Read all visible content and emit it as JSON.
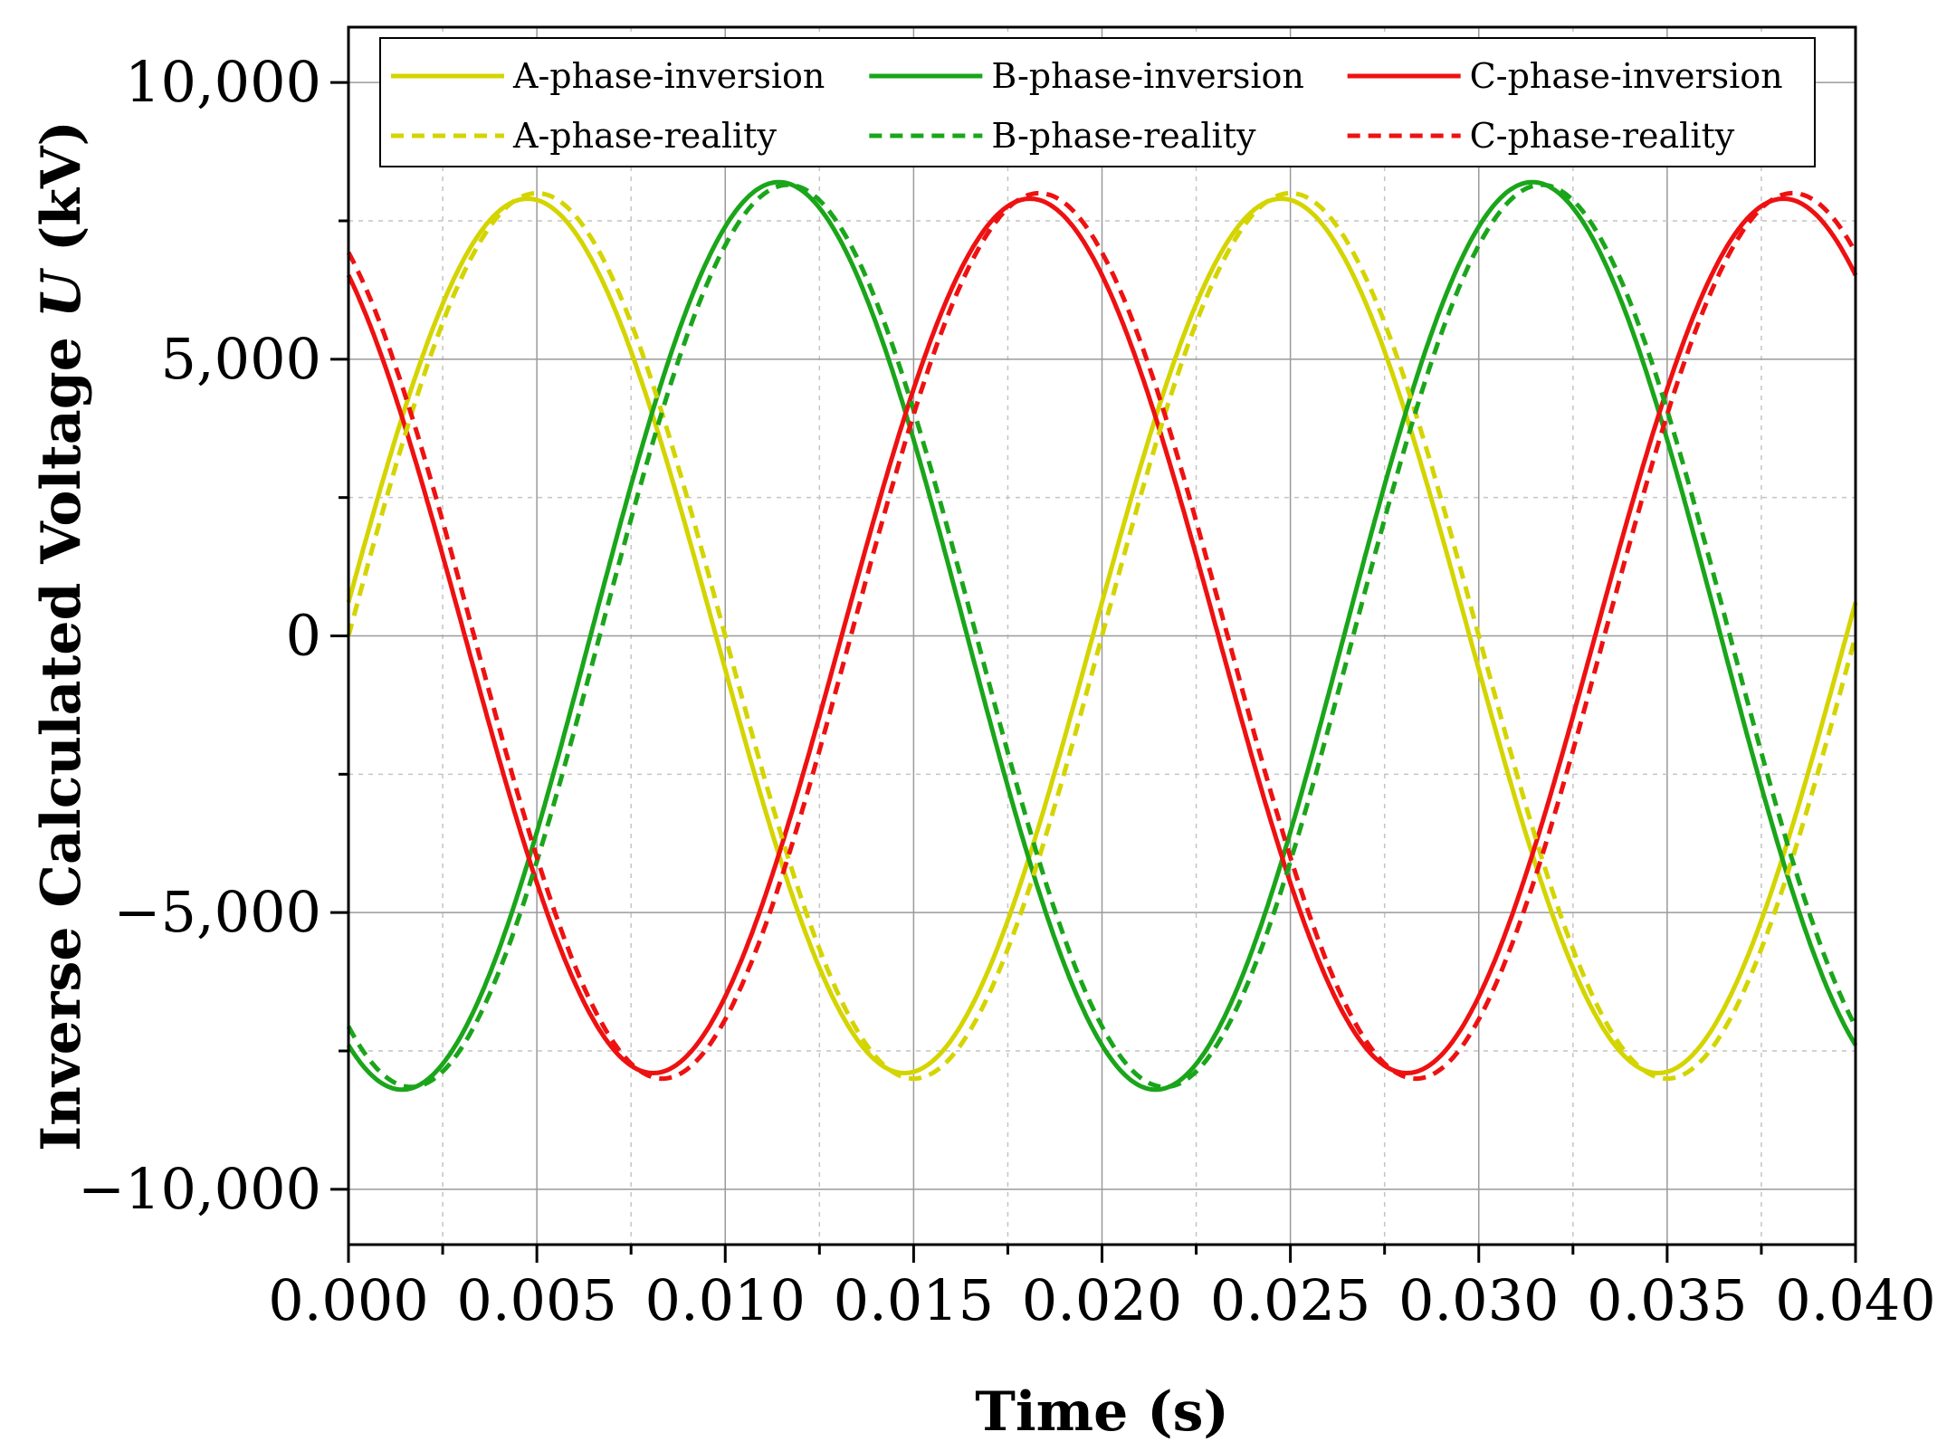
{
  "chart_data": {
    "type": "line",
    "title": "",
    "xlabel": "Time (s)",
    "ylabel_prefix": "Inverse Calculated Voltage ",
    "ylabel_symbol": "U",
    "ylabel_suffix": " (kV)",
    "xlim": [
      0,
      0.04
    ],
    "ylim": [
      -11000,
      11000
    ],
    "x_ticks": [
      0,
      0.005,
      0.01,
      0.015,
      0.02,
      0.025,
      0.03,
      0.035,
      0.04
    ],
    "x_tick_labels": [
      "0.000",
      "0.005",
      "0.010",
      "0.015",
      "0.020",
      "0.025",
      "0.030",
      "0.035",
      "0.040"
    ],
    "y_ticks": [
      -10000,
      -5000,
      0,
      5000,
      10000
    ],
    "y_tick_labels": [
      "−10,000",
      "−5,000",
      "0",
      "5,000",
      "10,000"
    ],
    "grid": true,
    "legend_position": "top",
    "colors": {
      "A": "#d4d400",
      "B": "#1aa51a",
      "C": "#ee1111"
    },
    "series": [
      {
        "name": "A-phase-inversion",
        "phase": "A",
        "style": "solid",
        "amplitude": 7900,
        "phase_deg": 4.4,
        "frequency_hz": 50
      },
      {
        "name": "B-phase-inversion",
        "phase": "B",
        "style": "solid",
        "amplitude": 8200,
        "phase_deg": -115.6,
        "frequency_hz": 50
      },
      {
        "name": "C-phase-inversion",
        "phase": "C",
        "style": "solid",
        "amplitude": 7900,
        "phase_deg": 124.4,
        "frequency_hz": 50
      },
      {
        "name": "A-phase-reality",
        "phase": "A",
        "style": "dashed",
        "amplitude": 8000,
        "phase_deg": 0,
        "frequency_hz": 50
      },
      {
        "name": "B-phase-reality",
        "phase": "B",
        "style": "dashed",
        "amplitude": 8150,
        "phase_deg": -120,
        "frequency_hz": 50
      },
      {
        "name": "C-phase-reality",
        "phase": "C",
        "style": "dashed",
        "amplitude": 8000,
        "phase_deg": 120,
        "frequency_hz": 50
      }
    ]
  }
}
